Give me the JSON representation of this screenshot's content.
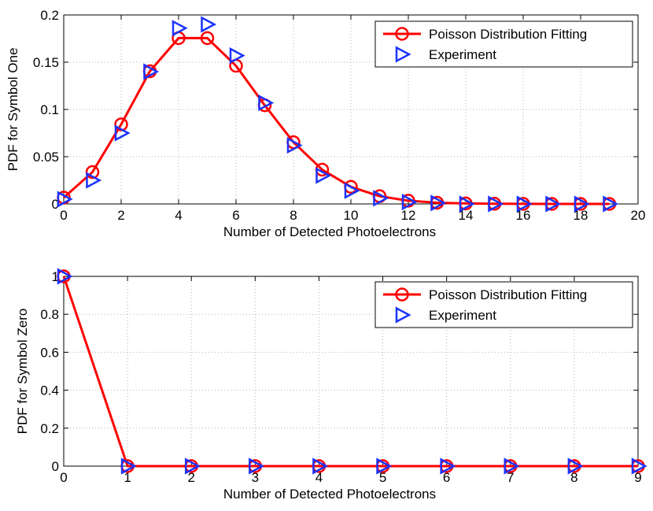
{
  "chart_data": [
    {
      "type": "line",
      "title": "",
      "xlabel": "Number of Detected Photoelectrons",
      "ylabel": "PDF for Symbol One",
      "xlim": [
        0,
        20
      ],
      "ylim": [
        0,
        0.2
      ],
      "xticks": [
        0,
        2,
        4,
        6,
        8,
        10,
        12,
        14,
        16,
        18,
        20
      ],
      "yticks": [
        0,
        0.05,
        0.1,
        0.15,
        0.2
      ],
      "xtick_labels": [
        "0",
        "2",
        "4",
        "6",
        "8",
        "10",
        "12",
        "14",
        "16",
        "18",
        "20"
      ],
      "ytick_labels": [
        "0",
        "0.05",
        "0.1",
        "0.15",
        "0.2"
      ],
      "grid": true,
      "legend": "top-right",
      "series": [
        {
          "name": "Poisson Distribution Fitting",
          "color": "#ff0000",
          "marker": "circle",
          "x": [
            0,
            1,
            2,
            3,
            4,
            5,
            6,
            7,
            8,
            9,
            10,
            11,
            12,
            13,
            14,
            15,
            16,
            17,
            18,
            19
          ],
          "y": [
            0.0067,
            0.0337,
            0.0842,
            0.1404,
            0.1755,
            0.1755,
            0.1462,
            0.1044,
            0.0653,
            0.0363,
            0.0181,
            0.0082,
            0.0034,
            0.0013,
            0.0005,
            0.0002,
            0.0001,
            0.0,
            0.0,
            0.0
          ]
        },
        {
          "name": "Experiment",
          "color": "#1a33ff",
          "marker": "triangle-right",
          "x": [
            0,
            1,
            2,
            3,
            4,
            5,
            6,
            7,
            8,
            9,
            10,
            11,
            12,
            13,
            14,
            15,
            16,
            17,
            18,
            19
          ],
          "y": [
            0.005,
            0.025,
            0.075,
            0.14,
            0.186,
            0.19,
            0.157,
            0.107,
            0.062,
            0.03,
            0.014,
            0.006,
            0.002,
            0.001,
            0.0,
            0.0,
            0.0,
            0.0,
            0.0,
            0.0
          ]
        }
      ]
    },
    {
      "type": "line",
      "title": "",
      "xlabel": "Number of Detected Photoelectrons",
      "ylabel": "PDF for Symbol Zero",
      "xlim": [
        0,
        9
      ],
      "ylim": [
        0,
        1
      ],
      "xticks": [
        0,
        1,
        2,
        3,
        4,
        5,
        6,
        7,
        8,
        9
      ],
      "yticks": [
        0,
        0.2,
        0.4,
        0.6,
        0.8,
        1
      ],
      "xtick_labels": [
        "0",
        "1",
        "2",
        "3",
        "4",
        "5",
        "6",
        "7",
        "8",
        "9"
      ],
      "ytick_labels": [
        "0",
        "0.2",
        "0.4",
        "0.6",
        "0.8",
        "1"
      ],
      "grid": true,
      "legend": "top-right",
      "series": [
        {
          "name": "Poisson Distribution Fitting",
          "color": "#ff0000",
          "marker": "circle",
          "x": [
            0,
            1,
            2,
            3,
            4,
            5,
            6,
            7,
            8,
            9
          ],
          "y": [
            1,
            0,
            0,
            0,
            0,
            0,
            0,
            0,
            0,
            0
          ]
        },
        {
          "name": "Experiment",
          "color": "#1a33ff",
          "marker": "triangle-right",
          "x": [
            0,
            1,
            2,
            3,
            4,
            5,
            6,
            7,
            8,
            9
          ],
          "y": [
            1,
            0,
            0,
            0,
            0,
            0,
            0,
            0,
            0,
            0
          ]
        }
      ]
    }
  ]
}
